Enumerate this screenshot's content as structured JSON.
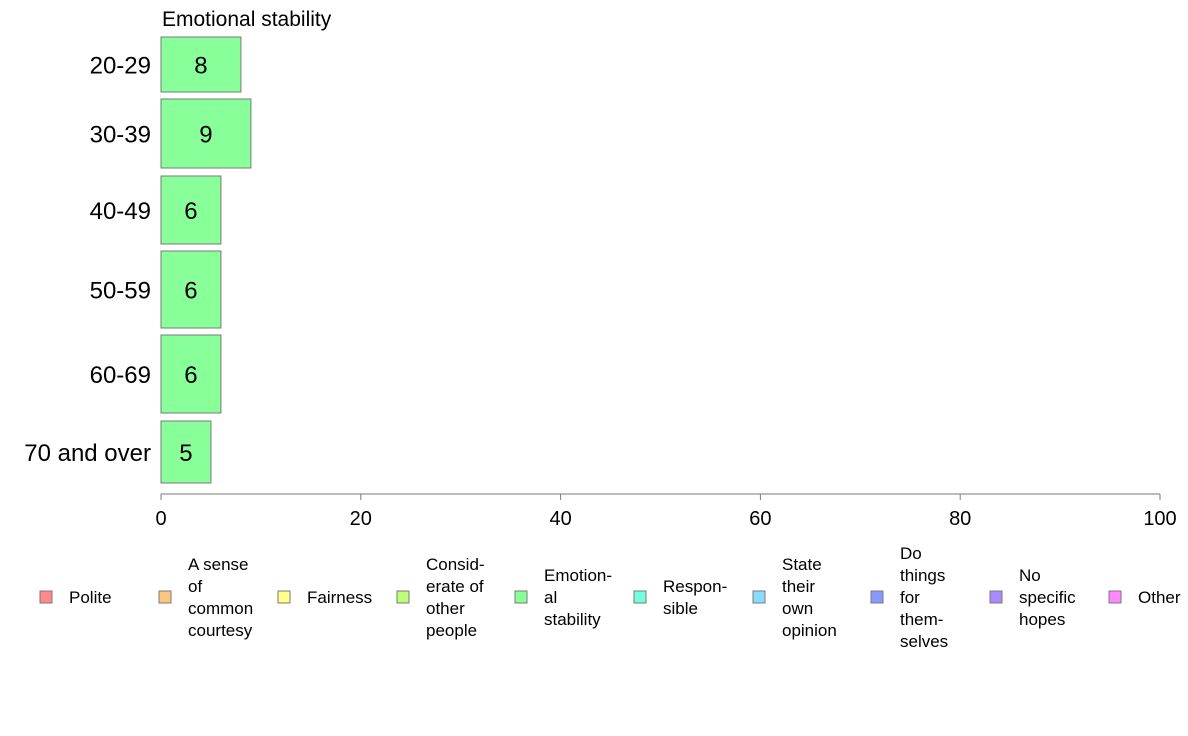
{
  "chart_data": {
    "type": "bar",
    "orientation": "horizontal",
    "title": "Emotional stability",
    "categories": [
      "20-29",
      "30-39",
      "40-49",
      "50-59",
      "60-69",
      "70 and over"
    ],
    "values": [
      8,
      9,
      6,
      6,
      6,
      5
    ],
    "value_labels": [
      "8",
      "9",
      "6",
      "6",
      "6",
      "5"
    ],
    "bar_color": "#88ff99",
    "xlim": [
      0,
      100
    ],
    "xticks": [
      "0",
      "20",
      "40",
      "60",
      "80",
      "100"
    ],
    "xlabel": "",
    "ylabel": "",
    "grid": false,
    "legend_position": "bottom",
    "legend": [
      {
        "label": "Polite",
        "color": "#ff8888"
      },
      {
        "label": "A sense of common courtesy",
        "color": "#ffc47f"
      },
      {
        "label": "Fairness",
        "color": "#ffff88"
      },
      {
        "label": "Consid-erate of other people",
        "color": "#bbff77"
      },
      {
        "label": "Emotion-al stability",
        "color": "#88ff99"
      },
      {
        "label": "Respon-sible",
        "color": "#77ffdd"
      },
      {
        "label": "State their own opinion",
        "color": "#88ddff"
      },
      {
        "label": "Do things for them-selves",
        "color": "#8899ff"
      },
      {
        "label": "No specific hopes",
        "color": "#aa88ff"
      },
      {
        "label": "Other",
        "color": "#ff88ff"
      }
    ]
  }
}
